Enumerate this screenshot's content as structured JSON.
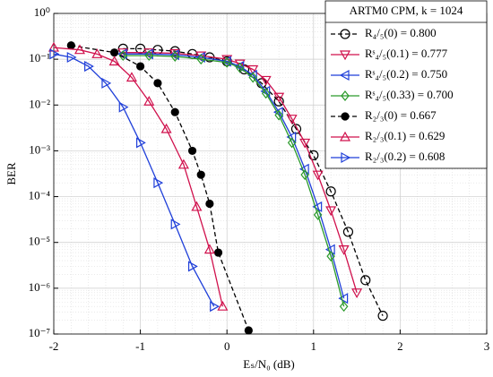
{
  "chart_data": {
    "type": "line",
    "xlabel": "Eₛ/N₀ (dB)",
    "ylabel": "BER",
    "legend_title": "ARTM0 CPM, k = 1024",
    "legend": "upper right",
    "xlim": [
      -2,
      3
    ],
    "xticks": [
      -2,
      -1,
      0,
      1,
      2,
      3
    ],
    "ylim": [
      1e-07,
      1
    ],
    "log_y": true,
    "grid": true,
    "yticks": [
      {
        "value": 1e-07,
        "label": "10⁻⁷"
      },
      {
        "value": 1e-06,
        "label": "10⁻⁶"
      },
      {
        "value": 1e-05,
        "label": "10⁻⁵"
      },
      {
        "value": 0.0001,
        "label": "10⁻⁴"
      },
      {
        "value": 0.001,
        "label": "10⁻³"
      },
      {
        "value": 0.01,
        "label": "10⁻²"
      },
      {
        "value": 0.1,
        "label": "10⁻¹"
      },
      {
        "value": 1,
        "label": "10⁰"
      }
    ],
    "series": [
      {
        "name": "R₄/₅(0) = 0.800",
        "color": "#000000",
        "marker": "circle",
        "filled": false,
        "dashed": true,
        "x": [
          -1.2,
          -1.0,
          -0.8,
          -0.6,
          -0.4,
          -0.2,
          0,
          0.2,
          0.4,
          0.6,
          0.8,
          1.0,
          1.2,
          1.4,
          1.6,
          1.8
        ],
        "values": [
          0.17,
          0.17,
          0.16,
          0.15,
          0.13,
          0.11,
          0.09,
          0.06,
          0.03,
          0.012,
          0.003,
          0.0008,
          0.00013,
          1.7e-05,
          1.5e-06,
          2.5e-07
        ]
      },
      {
        "name": "Rˢ₄/₅(0.1) = 0.777",
        "color": "#d0104c",
        "marker": "triangle-down",
        "filled": false,
        "dashed": false,
        "x": [
          -1.2,
          -0.9,
          -0.6,
          -0.3,
          0,
          0.15,
          0.3,
          0.45,
          0.6,
          0.75,
          0.9,
          1.05,
          1.2,
          1.35,
          1.5
        ],
        "values": [
          0.14,
          0.14,
          0.135,
          0.12,
          0.1,
          0.08,
          0.06,
          0.035,
          0.015,
          0.005,
          0.0015,
          0.0003,
          5e-05,
          7e-06,
          8e-07
        ]
      },
      {
        "name": "Rˢ₄/₅(0.2) = 0.750",
        "color": "#1f3fd9",
        "marker": "triangle-left",
        "filled": false,
        "dashed": false,
        "x": [
          -1.2,
          -0.9,
          -0.6,
          -0.3,
          0,
          0.15,
          0.3,
          0.45,
          0.6,
          0.75,
          0.9,
          1.05,
          1.2,
          1.35
        ],
        "values": [
          0.13,
          0.13,
          0.125,
          0.11,
          0.09,
          0.07,
          0.045,
          0.02,
          0.007,
          0.002,
          0.0004,
          6e-05,
          7e-06,
          6e-07
        ]
      },
      {
        "name": "Rˢ₄/₅(0.33) = 0.700",
        "color": "#2a9a2a",
        "marker": "diamond",
        "filled": false,
        "dashed": false,
        "x": [
          -1.2,
          -0.9,
          -0.6,
          -0.3,
          0,
          0.15,
          0.3,
          0.45,
          0.6,
          0.75,
          0.9,
          1.05,
          1.2,
          1.35
        ],
        "values": [
          0.12,
          0.12,
          0.115,
          0.1,
          0.085,
          0.065,
          0.04,
          0.018,
          0.006,
          0.0015,
          0.0003,
          4e-05,
          5e-06,
          4e-07
        ]
      },
      {
        "name": "R₂/₃(0) = 0.667",
        "color": "#000000",
        "marker": "circle",
        "filled": true,
        "dashed": true,
        "x": [
          -1.8,
          -1.3,
          -1.0,
          -0.8,
          -0.6,
          -0.4,
          -0.3,
          -0.2,
          -0.1,
          0.25
        ],
        "values": [
          0.2,
          0.14,
          0.07,
          0.03,
          0.007,
          0.001,
          0.0003,
          7e-05,
          6e-06,
          1.2e-07
        ]
      },
      {
        "name": "R₂/₃(0.1) = 0.629",
        "color": "#d0104c",
        "marker": "triangle-up",
        "filled": false,
        "dashed": false,
        "x": [
          -2,
          -1.7,
          -1.5,
          -1.3,
          -1.1,
          -0.9,
          -0.7,
          -0.5,
          -0.35,
          -0.2,
          -0.05
        ],
        "values": [
          0.18,
          0.16,
          0.13,
          0.09,
          0.04,
          0.012,
          0.003,
          0.0005,
          6e-05,
          7e-06,
          4e-07
        ]
      },
      {
        "name": "R₂/₃(0.2) = 0.608",
        "color": "#1f3fd9",
        "marker": "triangle-right",
        "filled": false,
        "dashed": false,
        "x": [
          -2,
          -1.8,
          -1.6,
          -1.4,
          -1.2,
          -1.0,
          -0.8,
          -0.6,
          -0.4,
          -0.15
        ],
        "values": [
          0.13,
          0.11,
          0.07,
          0.03,
          0.009,
          0.0015,
          0.0002,
          2.5e-05,
          3e-06,
          4e-07
        ]
      }
    ]
  }
}
